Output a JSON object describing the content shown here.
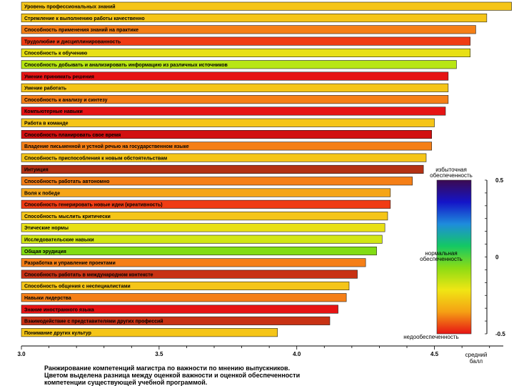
{
  "chart_data": {
    "type": "bar",
    "orientation": "horizontal",
    "x_axis": {
      "range": [
        3.0,
        4.75
      ],
      "ticks": [
        3.0,
        3.5,
        4.0,
        4.5
      ],
      "tick_labels": [
        "3.0",
        "3.5",
        "4.0",
        "4.5"
      ],
      "label": "средний балл"
    },
    "bars": [
      {
        "label": "Уровень профессиональных знаний",
        "value": 4.78,
        "color": "#f5c518"
      },
      {
        "label": "Стремление к выполнению работы качественно",
        "value": 4.69,
        "color": "#f5c518"
      },
      {
        "label": "Способность применения знаний на практике",
        "value": 4.65,
        "color": "#f57f17"
      },
      {
        "label": "Трудолюбие и дисциплинированность",
        "value": 4.63,
        "color": "#f03c14"
      },
      {
        "label": "Способность к обучению",
        "value": 4.63,
        "color": "#e8e014"
      },
      {
        "label": "Способность добывать и анализировать информацию из различных источников",
        "value": 4.58,
        "color": "#b8e614"
      },
      {
        "label": "Умение принимать решения",
        "value": 4.55,
        "color": "#e61414"
      },
      {
        "label": "Умение работать",
        "value": 4.55,
        "color": "#f5c518"
      },
      {
        "label": "Способность к анализу и синтезу",
        "value": 4.55,
        "color": "#f57f17"
      },
      {
        "label": "Компьютерные навыки",
        "value": 4.54,
        "color": "#e61414"
      },
      {
        "label": "Работа в команде",
        "value": 4.5,
        "color": "#f5c518"
      },
      {
        "label": "Способность планировать свое время",
        "value": 4.49,
        "color": "#d21010"
      },
      {
        "label": "Владение письменной и устной речью на государственном языке",
        "value": 4.49,
        "color": "#f57f17"
      },
      {
        "label": "Способность приспособления к новым обстоятельствам",
        "value": 4.47,
        "color": "#f5c518"
      },
      {
        "label": "Интуиция",
        "value": 4.46,
        "color": "#b43214"
      },
      {
        "label": "Способность работать автономно",
        "value": 4.42,
        "color": "#f57f17"
      },
      {
        "label": "Воля к победе",
        "value": 4.34,
        "color": "#f5a518"
      },
      {
        "label": "Способность генерировать новые идеи (креативность)",
        "value": 4.34,
        "color": "#f03c14"
      },
      {
        "label": "Способность мыслить критически",
        "value": 4.33,
        "color": "#f5c518"
      },
      {
        "label": "Этические нормы",
        "value": 4.32,
        "color": "#e8e014"
      },
      {
        "label": "Исследовательские навыки",
        "value": 4.31,
        "color": "#d2e614"
      },
      {
        "label": "Общая эрудиция",
        "value": 4.29,
        "color": "#82dc14"
      },
      {
        "label": "Разработка и управление проектами",
        "value": 4.25,
        "color": "#f57f17"
      },
      {
        "label": "Способность работать в международном контексте",
        "value": 4.22,
        "color": "#c83214"
      },
      {
        "label": "Способность общения с неспециалистами",
        "value": 4.19,
        "color": "#f5c518"
      },
      {
        "label": "Навыки лидерства",
        "value": 4.18,
        "color": "#f57f17"
      },
      {
        "label": "Знание иностранного языка",
        "value": 4.15,
        "color": "#e61414"
      },
      {
        "label": "Взаимодействие с представителями других профессий",
        "value": 4.12,
        "color": "#c83214"
      },
      {
        "label": "Понимание других культур",
        "value": 3.93,
        "color": "#f5c518"
      }
    ],
    "legend": {
      "type": "colorbar",
      "range": [
        -0.5,
        0.5
      ],
      "tick_labels": [
        "0.5",
        "0",
        "-0.5"
      ],
      "top_label": "избыточная обеспеченность",
      "middle_label": "нормальная обеспеченность",
      "bottom_label": "недообеспеченность",
      "gradient_colors": [
        "#3c0a50",
        "#1414c8",
        "#1e8cdc",
        "#14c864",
        "#8cdc14",
        "#f0e614",
        "#f5a014",
        "#e61414"
      ]
    },
    "caption": [
      "Ранжирование компетенций магистра по важности по мнению выпускников.",
      "Цветом выделена разница между оценкой важности и оценкой обеспеченности",
      "компетенции существующей учебной программой."
    ]
  }
}
